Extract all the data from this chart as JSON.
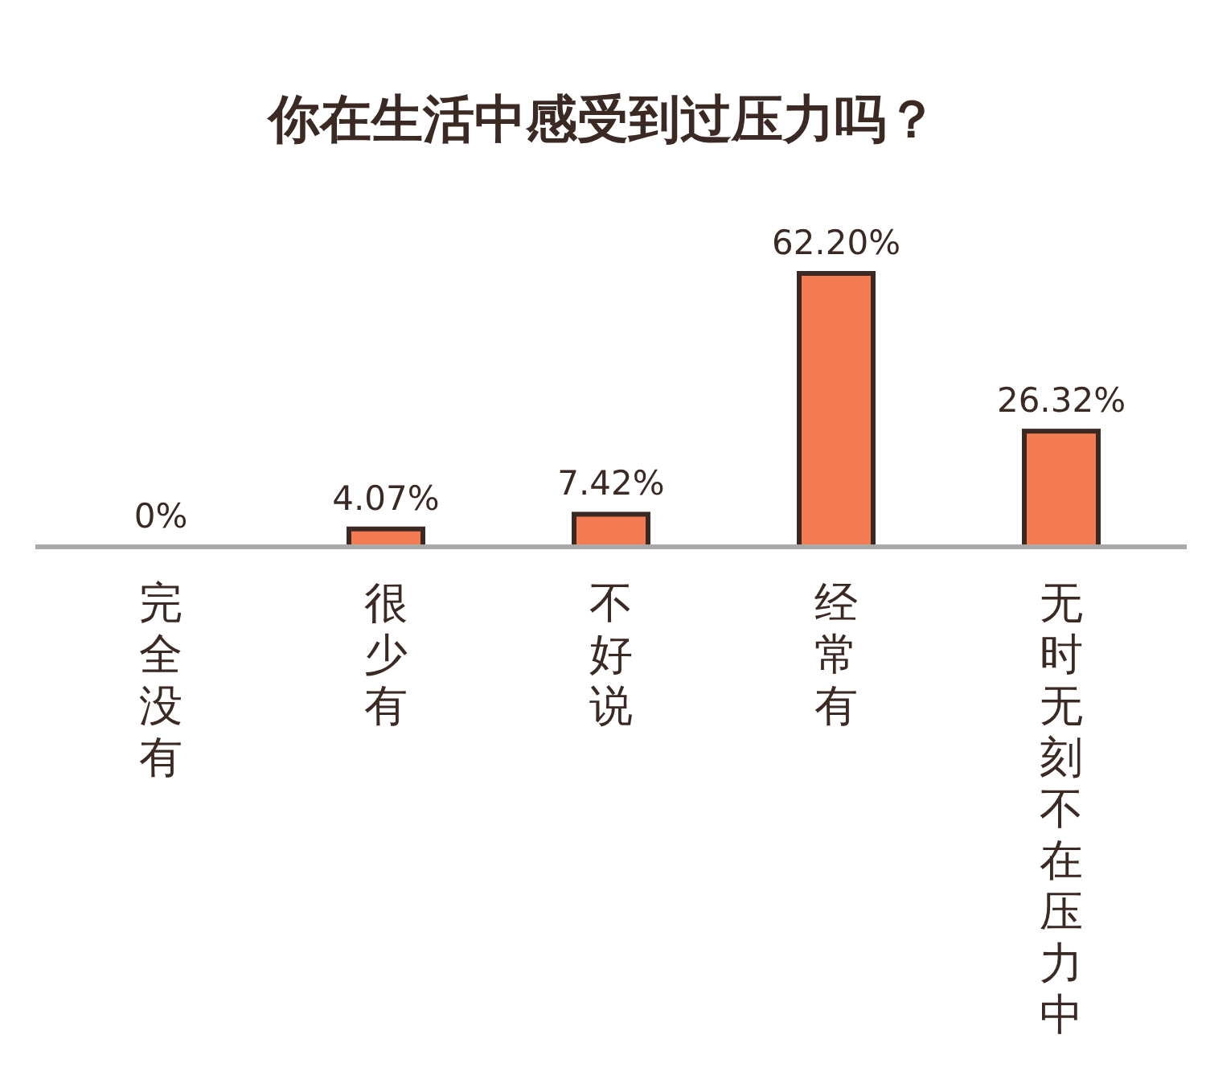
{
  "chart_data": {
    "type": "bar",
    "title": "你在生活中感受到过压力吗？",
    "categories": [
      "完全没有",
      "很少有",
      "不好说",
      "经常有",
      "无时无刻不在压力中"
    ],
    "values": [
      0,
      4.07,
      7.42,
      62.2,
      26.32
    ],
    "value_labels": [
      "0%",
      "4.07%",
      "7.42%",
      "62.20%",
      "26.32%"
    ],
    "color": "#f47c52"
  }
}
